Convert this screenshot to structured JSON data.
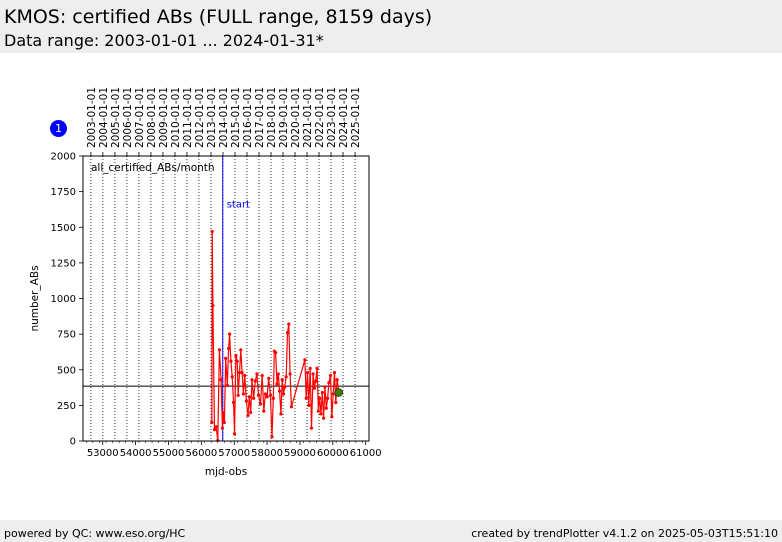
{
  "header": {
    "title": "KMOS: certified ABs (FULL range, 8159 days)",
    "subtitle": "Data range: 2003-01-01 ... 2024-01-31*"
  },
  "badge": {
    "label": "1",
    "color": "#0000ff"
  },
  "footer": {
    "left": "powered by QC: www.eso.org/HC",
    "right": "created by trendPlotter v4.1.2 on 2025-05-03T15:51:10"
  },
  "chart_data": {
    "type": "line",
    "xlabel": "mjd-obs",
    "ylabel": "number_ABs",
    "xlim": [
      52400,
      61100
    ],
    "ylim": [
      0,
      2000
    ],
    "x_ticks": [
      53000,
      54000,
      55000,
      56000,
      57000,
      58000,
      59000,
      60000,
      61000
    ],
    "y_ticks": [
      0,
      250,
      500,
      750,
      1000,
      1250,
      1500,
      1750,
      2000
    ],
    "top_axis_dates": [
      "2003-01-01",
      "2004-01-01",
      "2005-01-01",
      "2006-01-01",
      "2007-01-01",
      "2008-01-01",
      "2009-01-01",
      "2010-01-01",
      "2011-01-01",
      "2012-01-01",
      "2013-01-01",
      "2014-01-01",
      "2015-01-01",
      "2016-01-01",
      "2017-01-01",
      "2018-01-01",
      "2019-01-01",
      "2020-01-01",
      "2021-01-01",
      "2022-01-01",
      "2023-01-01",
      "2024-01-01",
      "2025-01-01"
    ],
    "top_axis_mjd": [
      52640,
      53005,
      53371,
      53736,
      54101,
      54466,
      54832,
      55197,
      55562,
      55927,
      56293,
      56658,
      57023,
      57388,
      57754,
      58119,
      58484,
      58849,
      59215,
      59580,
      59945,
      60310,
      60676
    ],
    "panel_label": "all_certified_ABs/month",
    "start_marker": {
      "label": "start",
      "x": 56650,
      "color": "#0000ff"
    },
    "reference_line": {
      "y": 385,
      "color": "#000000"
    },
    "series_color": "#ff0000",
    "last_point_color": "#3a7d00",
    "series": [
      {
        "values": [
          [
            56320,
            130
          ],
          [
            56330,
            1470
          ],
          [
            56350,
            950
          ],
          [
            56400,
            80
          ],
          [
            56450,
            100
          ],
          [
            56500,
            5
          ],
          [
            56550,
            640
          ],
          [
            56600,
            430
          ],
          [
            56640,
            90
          ],
          [
            56670,
            200
          ],
          [
            56700,
            130
          ],
          [
            56740,
            580
          ],
          [
            56790,
            390
          ],
          [
            56830,
            650
          ],
          [
            56860,
            750
          ],
          [
            56900,
            560
          ],
          [
            56940,
            450
          ],
          [
            56980,
            270
          ],
          [
            57010,
            50
          ],
          [
            57050,
            600
          ],
          [
            57090,
            560
          ],
          [
            57120,
            320
          ],
          [
            57160,
            480
          ],
          [
            57200,
            640
          ],
          [
            57240,
            480
          ],
          [
            57280,
            330
          ],
          [
            57320,
            460
          ],
          [
            57370,
            280
          ],
          [
            57420,
            180
          ],
          [
            57460,
            310
          ],
          [
            57500,
            200
          ],
          [
            57540,
            430
          ],
          [
            57590,
            300
          ],
          [
            57640,
            420
          ],
          [
            57690,
            470
          ],
          [
            57740,
            320
          ],
          [
            57800,
            260
          ],
          [
            57850,
            460
          ],
          [
            57900,
            210
          ],
          [
            57950,
            330
          ],
          [
            58000,
            310
          ],
          [
            58050,
            440
          ],
          [
            58100,
            320
          ],
          [
            58150,
            30
          ],
          [
            58190,
            300
          ],
          [
            58220,
            630
          ],
          [
            58260,
            620
          ],
          [
            58300,
            400
          ],
          [
            58340,
            470
          ],
          [
            58380,
            350
          ],
          [
            58420,
            190
          ],
          [
            58460,
            430
          ],
          [
            58500,
            330
          ],
          [
            58540,
            380
          ],
          [
            58580,
            450
          ],
          [
            58620,
            760
          ],
          [
            58660,
            820
          ],
          [
            58700,
            470
          ],
          [
            58740,
            240
          ],
          [
            59150,
            570
          ],
          [
            59190,
            300
          ],
          [
            59230,
            480
          ],
          [
            59270,
            250
          ],
          [
            59310,
            510
          ],
          [
            59350,
            90
          ],
          [
            59400,
            470
          ],
          [
            59440,
            370
          ],
          [
            59480,
            420
          ],
          [
            59520,
            510
          ],
          [
            59560,
            210
          ],
          [
            59600,
            300
          ],
          [
            59640,
            190
          ],
          [
            59680,
            340
          ],
          [
            59720,
            160
          ],
          [
            59760,
            380
          ],
          [
            59800,
            230
          ],
          [
            59840,
            300
          ],
          [
            59880,
            410
          ],
          [
            59930,
            460
          ],
          [
            59970,
            170
          ],
          [
            60010,
            330
          ],
          [
            60050,
            480
          ],
          [
            60090,
            270
          ],
          [
            60130,
            430
          ],
          [
            60180,
            340
          ]
        ]
      }
    ]
  }
}
